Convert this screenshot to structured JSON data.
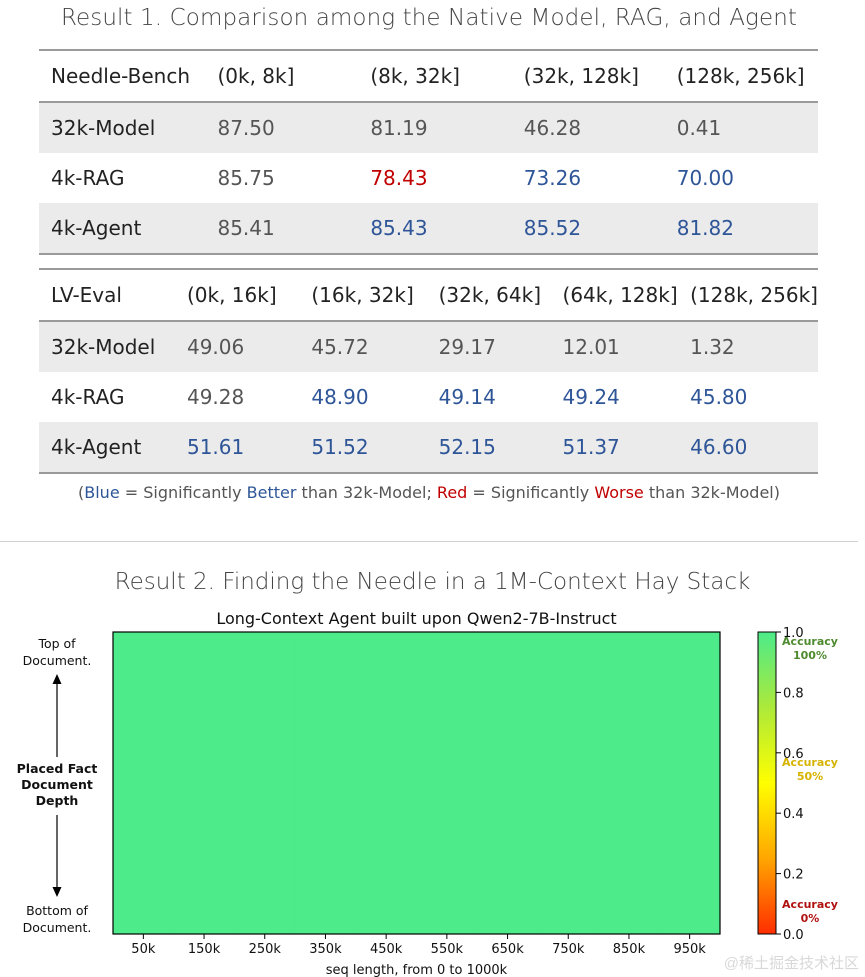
{
  "result1": {
    "title": "Result 1. Comparison among the Native Model, RAG, and Agent",
    "needle_bench": {
      "header": [
        "Needle-Bench",
        "(0k, 8k]",
        "(8k, 32k]",
        "(32k, 128k]",
        "(128k, 256k]"
      ],
      "rows": [
        {
          "label": "32k-Model",
          "cells": [
            {
              "v": "87.50",
              "s": "n"
            },
            {
              "v": "81.19",
              "s": "n"
            },
            {
              "v": "46.28",
              "s": "n"
            },
            {
              "v": "0.41",
              "s": "n"
            }
          ]
        },
        {
          "label": "4k-RAG",
          "cells": [
            {
              "v": "85.75",
              "s": "n"
            },
            {
              "v": "78.43",
              "s": "worse"
            },
            {
              "v": "73.26",
              "s": "better"
            },
            {
              "v": "70.00",
              "s": "better"
            }
          ]
        },
        {
          "label": "4k-Agent",
          "cells": [
            {
              "v": "85.41",
              "s": "n"
            },
            {
              "v": "85.43",
              "s": "better"
            },
            {
              "v": "85.52",
              "s": "better"
            },
            {
              "v": "81.82",
              "s": "better"
            }
          ]
        }
      ]
    },
    "lv_eval": {
      "header": [
        "LV-Eval",
        "(0k, 16k]",
        "(16k, 32k]",
        "(32k, 64k]",
        "(64k, 128k]",
        "(128k, 256k]"
      ],
      "rows": [
        {
          "label": "32k-Model",
          "cells": [
            {
              "v": "49.06",
              "s": "n"
            },
            {
              "v": "45.72",
              "s": "n"
            },
            {
              "v": "29.17",
              "s": "n"
            },
            {
              "v": "12.01",
              "s": "n"
            },
            {
              "v": "1.32",
              "s": "n"
            }
          ]
        },
        {
          "label": "4k-RAG",
          "cells": [
            {
              "v": "49.28",
              "s": "n"
            },
            {
              "v": "48.90",
              "s": "better"
            },
            {
              "v": "49.14",
              "s": "better"
            },
            {
              "v": "49.24",
              "s": "better"
            },
            {
              "v": "45.80",
              "s": "better"
            }
          ]
        },
        {
          "label": "4k-Agent",
          "cells": [
            {
              "v": "51.61",
              "s": "better"
            },
            {
              "v": "51.52",
              "s": "better"
            },
            {
              "v": "52.15",
              "s": "better"
            },
            {
              "v": "51.37",
              "s": "better"
            },
            {
              "v": "46.60",
              "s": "better"
            }
          ]
        }
      ]
    },
    "legend": {
      "open": "(",
      "blue": "Blue",
      "eq1": " = Significantly ",
      "better": "Better",
      "than1": " than 32k-Model; ",
      "red": "Red",
      "eq2": " = Significantly ",
      "worse": "Worse",
      "than2": " than 32k-Model)"
    }
  },
  "result2": {
    "title": "Result 2. Finding the Needle in a 1M-Context Hay Stack"
  },
  "chart_data": {
    "type": "heatmap",
    "title": "Long-Context Agent built upon Qwen2-7B-Instruct",
    "xlabel": "seq length, from 0 to 1000k",
    "ylabel": "Placed Fact Document Depth",
    "ylabel_lines": [
      "Placed Fact",
      "Document",
      "Depth"
    ],
    "y_top_label_lines": [
      "Top of",
      "Document."
    ],
    "y_bottom_label_lines": [
      "Bottom of",
      "Document."
    ],
    "x_ticks": [
      "50k",
      "150k",
      "250k",
      "350k",
      "450k",
      "550k",
      "650k",
      "750k",
      "850k",
      "950k"
    ],
    "values": [
      [
        1,
        1,
        1,
        1,
        1,
        1,
        1,
        1,
        1,
        1
      ]
    ],
    "colorbar": {
      "ticks": [
        "1.0",
        "0.8",
        "0.6",
        "0.4",
        "0.2",
        "0.0"
      ],
      "range": [
        0,
        1
      ],
      "annotations": [
        {
          "lines": [
            "Accuracy",
            "100%"
          ],
          "value": 0.95,
          "color": "#4e8a2f"
        },
        {
          "lines": [
            "Accuracy",
            "50%"
          ],
          "value": 0.55,
          "color": "#d6b300"
        },
        {
          "lines": [
            "Accuracy",
            "0%"
          ],
          "value": 0.08,
          "color": "#b01010"
        }
      ],
      "stops": [
        "#ff2d00",
        "#ffa600",
        "#ffff00",
        "#ace93a",
        "#4deb8a"
      ]
    }
  },
  "watermark": "@稀土掘金技术社区"
}
